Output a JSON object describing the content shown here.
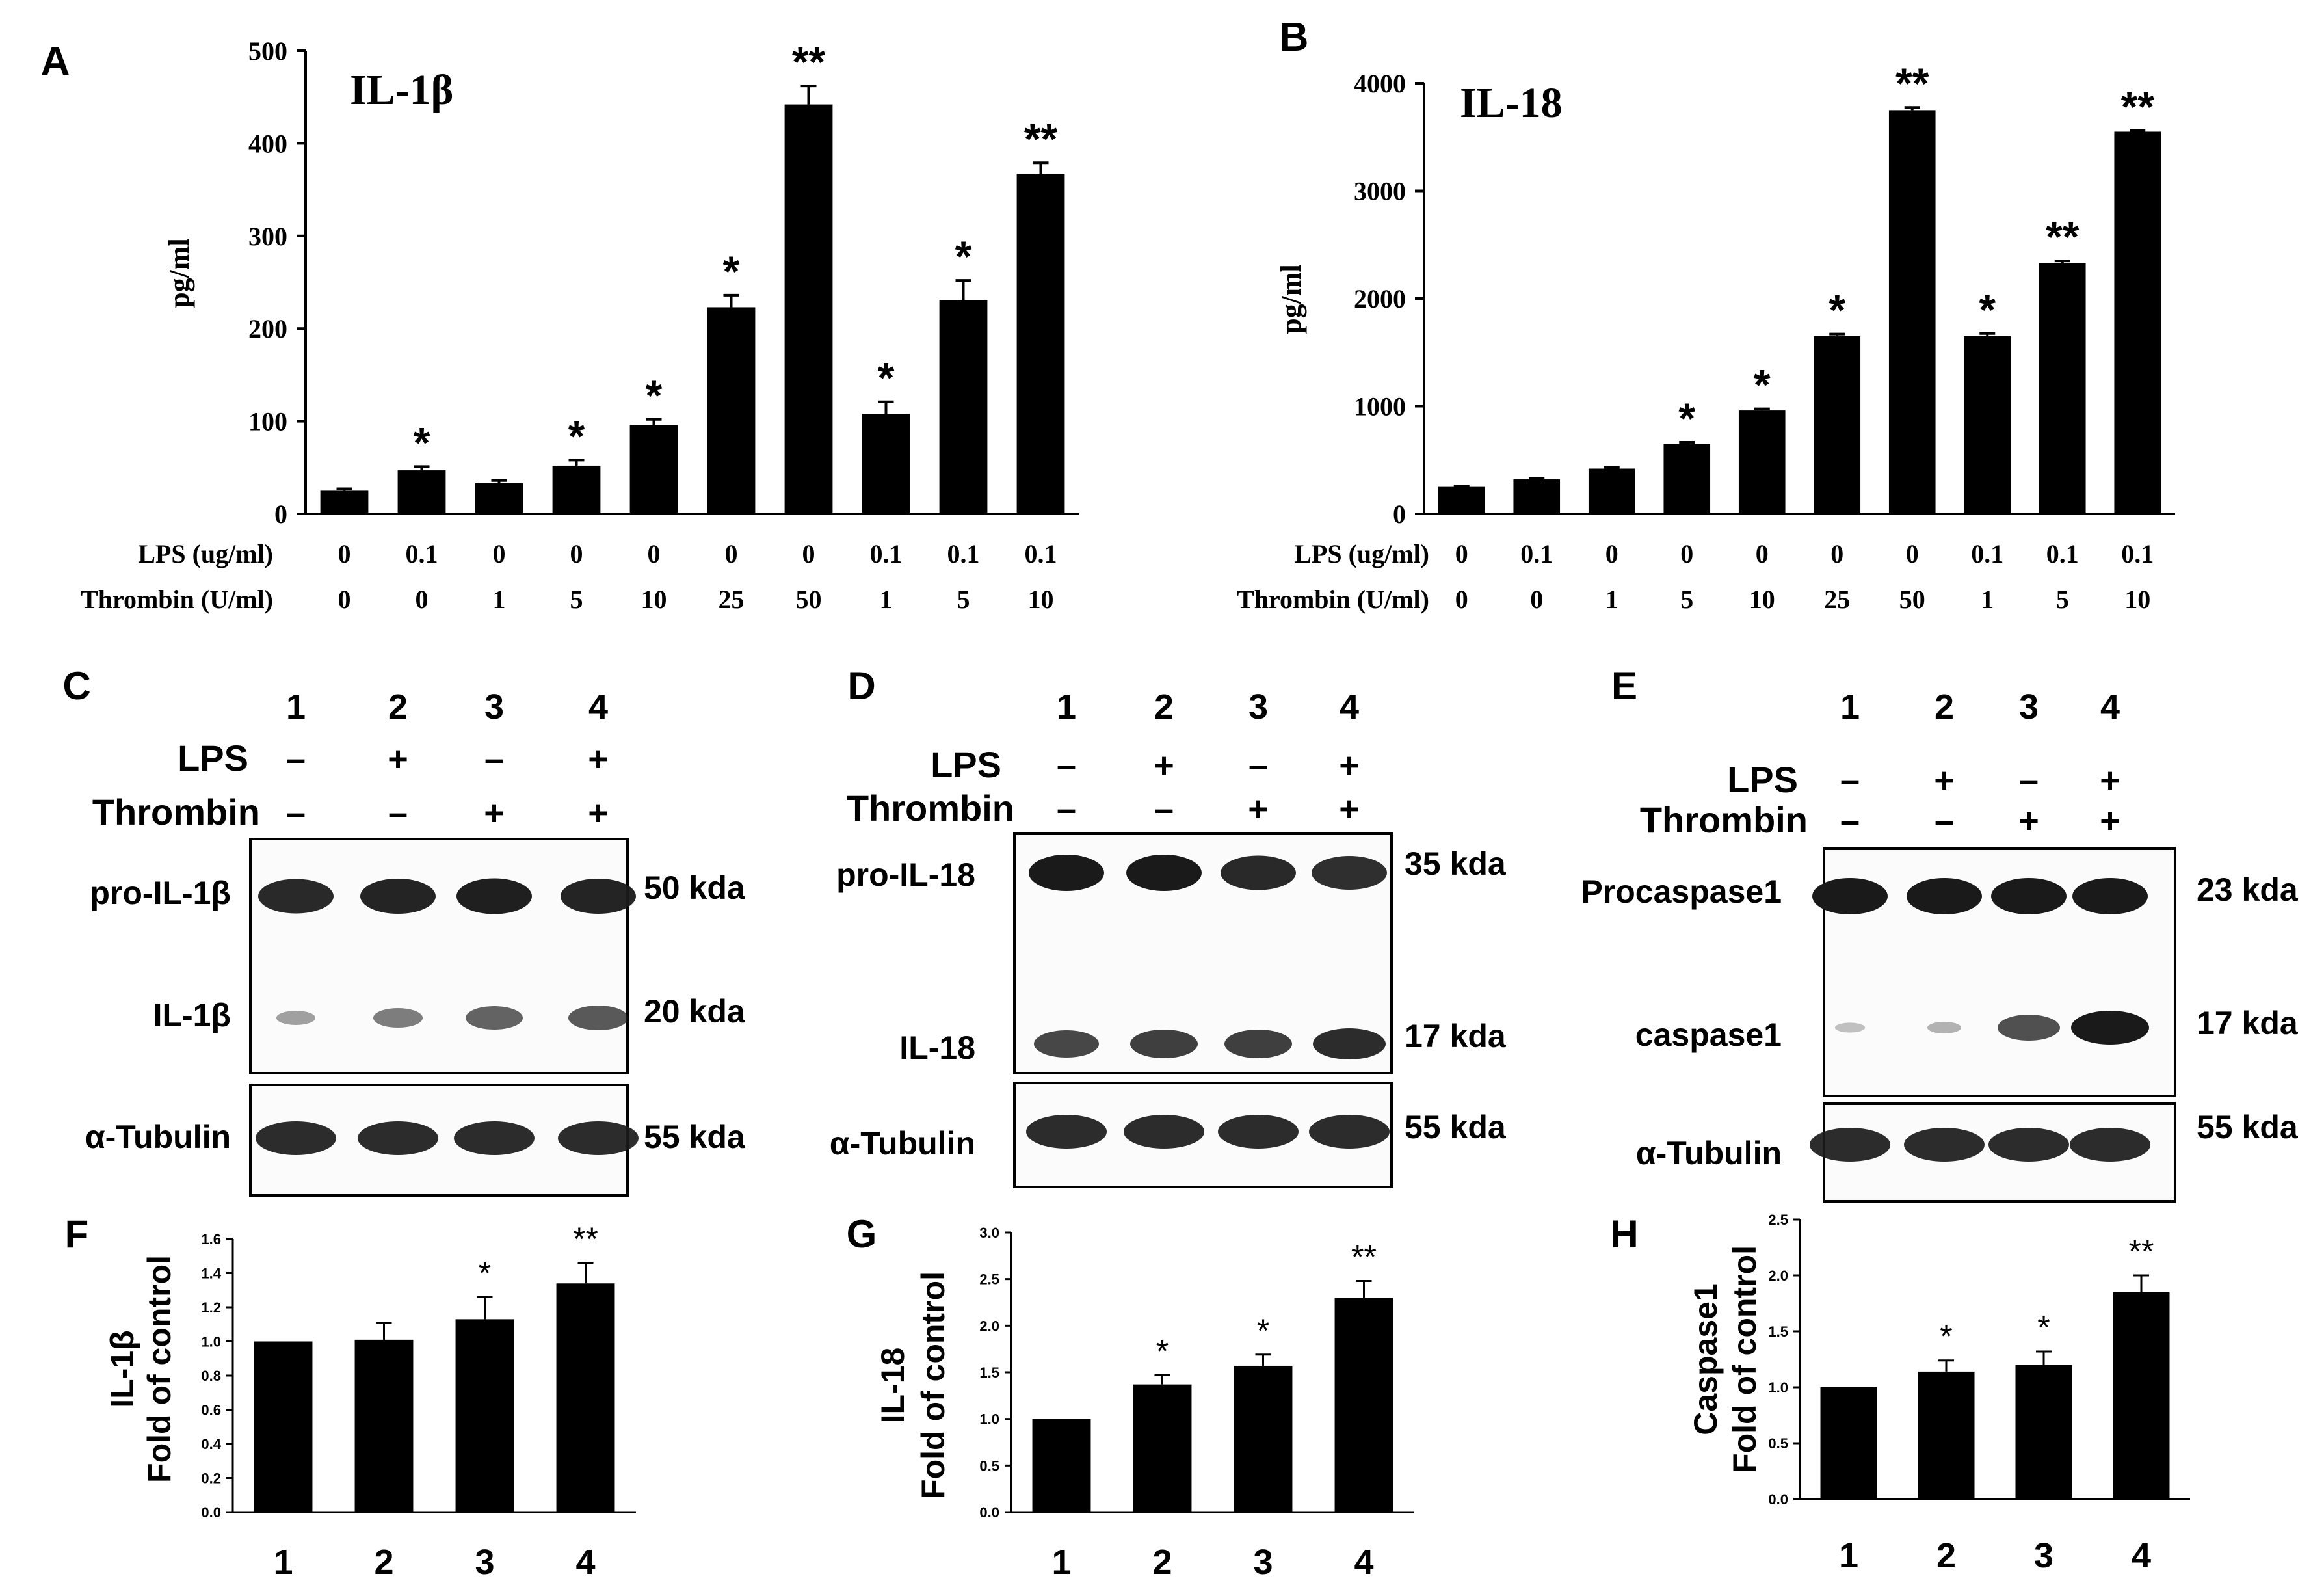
{
  "panels_top": [
    {
      "letter": "A",
      "chart_data": {
        "type": "bar",
        "title": "IL-1β",
        "ylabel": "pg/ml",
        "ylim": [
          0,
          500
        ],
        "yticks": [
          0,
          100,
          200,
          300,
          400,
          500
        ],
        "values": [
          25,
          47,
          33,
          52,
          96,
          223,
          442,
          108,
          231,
          367
        ],
        "errors": [
          2,
          4,
          3,
          6,
          6,
          13,
          20,
          13,
          21,
          12
        ],
        "significance": [
          "",
          "*",
          "",
          "*",
          "*",
          "*",
          "**",
          "*",
          "*",
          "**"
        ],
        "row_labels": [
          "LPS (ug/ml)",
          "Thrombin (U/ml)"
        ],
        "lps": [
          "0",
          "0.1",
          "0",
          "0",
          "0",
          "0",
          "0",
          "0.1",
          "0.1",
          "0.1"
        ],
        "thrombin": [
          "0",
          "0",
          "1",
          "5",
          "10",
          "25",
          "50",
          "1",
          "5",
          "10"
        ]
      }
    },
    {
      "letter": "B",
      "chart_data": {
        "type": "bar",
        "title": "IL-18",
        "ylabel": "pg/ml",
        "ylim": [
          0,
          4000
        ],
        "yticks": [
          0,
          1000,
          2000,
          3000,
          4000
        ],
        "values": [
          250,
          320,
          420,
          650,
          960,
          1650,
          3750,
          1650,
          2330,
          3550
        ],
        "errors": [
          10,
          10,
          12,
          15,
          15,
          20,
          25,
          25,
          20,
          10
        ],
        "significance": [
          "",
          "",
          "",
          "*",
          "*",
          "*",
          "**",
          "*",
          "**",
          "**"
        ],
        "row_labels": [
          "LPS (ug/ml)",
          "Thrombin (U/ml)"
        ],
        "lps": [
          "0",
          "0.1",
          "0",
          "0",
          "0",
          "0",
          "0",
          "0.1",
          "0.1",
          "0.1"
        ],
        "thrombin": [
          "0",
          "0",
          "1",
          "5",
          "10",
          "25",
          "50",
          "1",
          "5",
          "10"
        ]
      }
    }
  ],
  "blots": [
    {
      "letter": "C",
      "lanes": [
        "1",
        "2",
        "3",
        "4"
      ],
      "lps": [
        "–",
        "+",
        "–",
        "+"
      ],
      "thrombin": [
        "–",
        "–",
        "+",
        "+"
      ],
      "lps_label": "LPS",
      "thrombin_label": "Thrombin",
      "top_labels": [
        "pro-IL-1β",
        "IL-1β"
      ],
      "top_sizes": [
        "50 kda",
        "20 kda"
      ],
      "tub_label": "α-Tubulin",
      "tub_size": "55 kda"
    },
    {
      "letter": "D",
      "lanes": [
        "1",
        "2",
        "3",
        "4"
      ],
      "lps": [
        "–",
        "+",
        "–",
        "+"
      ],
      "thrombin": [
        "–",
        "–",
        "+",
        "+"
      ],
      "lps_label": "LPS",
      "thrombin_label": "Thrombin",
      "top_labels": [
        "pro-IL-18",
        "IL-18"
      ],
      "top_sizes": [
        "35 kda",
        "17 kda"
      ],
      "tub_label": "α-Tubulin",
      "tub_size": "55 kda"
    },
    {
      "letter": "E",
      "lanes": [
        "1",
        "2",
        "3",
        "4"
      ],
      "lps": [
        "–",
        "+",
        "–",
        "+"
      ],
      "thrombin": [
        "–",
        "–",
        "+",
        "+"
      ],
      "lps_label": "LPS",
      "thrombin_label": "Thrombin",
      "top_labels": [
        "Procaspase1",
        "caspase1"
      ],
      "top_sizes": [
        "23 kda",
        "17 kda"
      ],
      "tub_label": "α-Tubulin",
      "tub_size": "55 kda"
    }
  ],
  "panels_bottom": [
    {
      "letter": "F",
      "chart_data": {
        "type": "bar",
        "ylabel_lines": [
          "IL-1β",
          "Fold of control"
        ],
        "ylim": [
          0,
          1.6
        ],
        "yticks": [
          "0.0",
          "0.2",
          "0.4",
          "0.6",
          "0.8",
          "1.0",
          "1.2",
          "1.4",
          "1.6"
        ],
        "categories": [
          "1",
          "2",
          "3",
          "4"
        ],
        "values": [
          1.0,
          1.01,
          1.13,
          1.34
        ],
        "errors": [
          0,
          0.1,
          0.13,
          0.12
        ],
        "significance": [
          "",
          "",
          "*",
          "**"
        ]
      }
    },
    {
      "letter": "G",
      "chart_data": {
        "type": "bar",
        "ylabel_lines": [
          "IL-18",
          "Fold of control"
        ],
        "ylim": [
          0,
          3.0
        ],
        "yticks": [
          "0.0",
          "0.5",
          "1.0",
          "1.5",
          "2.0",
          "2.5",
          "3.0"
        ],
        "categories": [
          "1",
          "2",
          "3",
          "4"
        ],
        "values": [
          1.0,
          1.37,
          1.57,
          2.3
        ],
        "errors": [
          0,
          0.1,
          0.12,
          0.18
        ],
        "significance": [
          "",
          "*",
          "*",
          "**"
        ]
      }
    },
    {
      "letter": "H",
      "chart_data": {
        "type": "bar",
        "ylabel_lines": [
          "Caspase1",
          "Fold of control"
        ],
        "ylim": [
          0,
          2.5
        ],
        "yticks": [
          "0.0",
          "0.5",
          "1.0",
          "1.5",
          "2.0",
          "2.5"
        ],
        "categories": [
          "1",
          "2",
          "3",
          "4"
        ],
        "values": [
          1.0,
          1.14,
          1.2,
          1.85
        ],
        "errors": [
          0,
          0.1,
          0.12,
          0.15
        ],
        "significance": [
          "",
          "*",
          "*",
          "**"
        ]
      }
    }
  ]
}
